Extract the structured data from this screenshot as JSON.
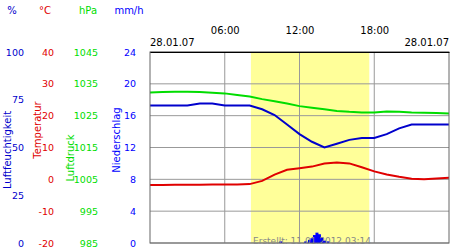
{
  "chart_data": {
    "type": "line",
    "x_start_label": "28.01.07",
    "x_end_label": "28.01.07",
    "footer": "Erstellt: 11.01.2012 03:14",
    "xlim": [
      0,
      24
    ],
    "xticks": [
      {
        "value": 6,
        "label": "06:00"
      },
      {
        "value": 12,
        "label": "12:00"
      },
      {
        "value": 18,
        "label": "18:00"
      }
    ],
    "daylight": [
      8.1,
      17.6
    ],
    "grid": true,
    "series": [
      {
        "name": "Luftfeuchtigkeit",
        "unit": "%",
        "color": "#0000cc",
        "type": "line",
        "ylim": [
          0,
          100
        ],
        "yticks": [
          0,
          25,
          50,
          75,
          100
        ],
        "x": [
          0,
          1,
          2,
          3,
          4,
          5,
          6,
          7,
          8,
          9,
          10,
          11,
          12,
          13,
          14,
          15,
          16,
          17,
          18,
          19,
          20,
          21,
          22,
          23,
          24
        ],
        "values": [
          72,
          72,
          72,
          72,
          73,
          73,
          72,
          72,
          72,
          70,
          67,
          62,
          57,
          53,
          50,
          52,
          54,
          55,
          55,
          57,
          60,
          62,
          62,
          62,
          62
        ]
      },
      {
        "name": "Temperatur",
        "unit": "°C",
        "color": "#e00000",
        "type": "line",
        "ylim": [
          -20,
          40
        ],
        "yticks": [
          -20,
          -10,
          0,
          10,
          20,
          30,
          40
        ],
        "x": [
          0,
          1,
          2,
          3,
          4,
          5,
          6,
          7,
          8,
          9,
          10,
          11,
          12,
          13,
          14,
          15,
          16,
          17,
          18,
          19,
          20,
          21,
          22,
          23,
          24
        ],
        "values": [
          -1.8,
          -1.8,
          -1.7,
          -1.7,
          -1.7,
          -1.6,
          -1.6,
          -1.6,
          -1.5,
          -0.5,
          1.5,
          3,
          3.5,
          4,
          5,
          5.3,
          5,
          3.8,
          2.5,
          1.5,
          0.8,
          0.2,
          0,
          0.3,
          0.5
        ]
      },
      {
        "name": "Luftdruck",
        "unit": "hPa",
        "color": "#00dd00",
        "type": "line",
        "ylim": [
          985,
          1045
        ],
        "yticks": [
          985,
          995,
          1005,
          1015,
          1025,
          1035,
          1045
        ],
        "x": [
          0,
          1,
          2,
          3,
          4,
          5,
          6,
          7,
          8,
          9,
          10,
          11,
          12,
          13,
          14,
          15,
          16,
          17,
          18,
          19,
          20,
          21,
          22,
          23,
          24
        ],
        "values": [
          1032.3,
          1032.4,
          1032.5,
          1032.5,
          1032.4,
          1032.2,
          1032,
          1031.5,
          1031,
          1030.2,
          1029.5,
          1028.8,
          1028,
          1027.5,
          1027,
          1026.5,
          1026.2,
          1026,
          1026,
          1026.3,
          1026.2,
          1026,
          1025.9,
          1025.8,
          1025.7
        ]
      },
      {
        "name": "Niederschlag",
        "unit": "mm/h",
        "color": "#0000ff",
        "type": "bar",
        "ylim": [
          0,
          24
        ],
        "yticks": [
          0,
          4,
          8,
          12,
          16,
          20,
          24
        ],
        "x": [
          10.5,
          12.5,
          12.8,
          13.0,
          13.2,
          13.4,
          13.6,
          13.8,
          14.0,
          14.3
        ],
        "values": [
          0.2,
          0.2,
          0.4,
          0.6,
          1.0,
          1.3,
          1.1,
          0.7,
          0.3,
          0.2
        ]
      }
    ]
  }
}
